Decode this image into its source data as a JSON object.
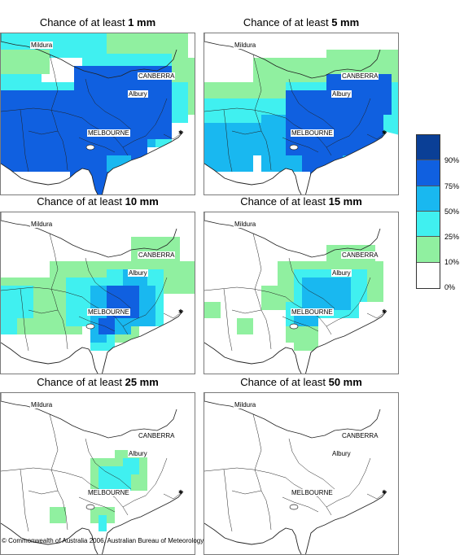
{
  "panels": [
    {
      "prefix": "Chance of at least ",
      "amount": "1 mm"
    },
    {
      "prefix": "Chance of at least ",
      "amount": "5 mm"
    },
    {
      "prefix": "Chance of at least ",
      "amount": "10 mm"
    },
    {
      "prefix": "Chance of at least ",
      "amount": "15 mm"
    },
    {
      "prefix": "Chance of at least ",
      "amount": "25 mm"
    },
    {
      "prefix": "Chance of at least ",
      "amount": "50 mm"
    }
  ],
  "places": {
    "mildura": "Mildura",
    "canberra": "CANBERRA",
    "albury": "Albury",
    "melbourne": "MELBOURNE"
  },
  "legend": {
    "labels": [
      "90%",
      "75%",
      "50%",
      "25%",
      "10%",
      "0%"
    ],
    "colors": [
      "#0a3f96",
      "#1060e0",
      "#19b8f0",
      "#40f0f0",
      "#90f0a0",
      "#ffffff"
    ]
  },
  "footer": "© Commonwealth of Australia 2006, Australian Bureau of Meteorology"
}
